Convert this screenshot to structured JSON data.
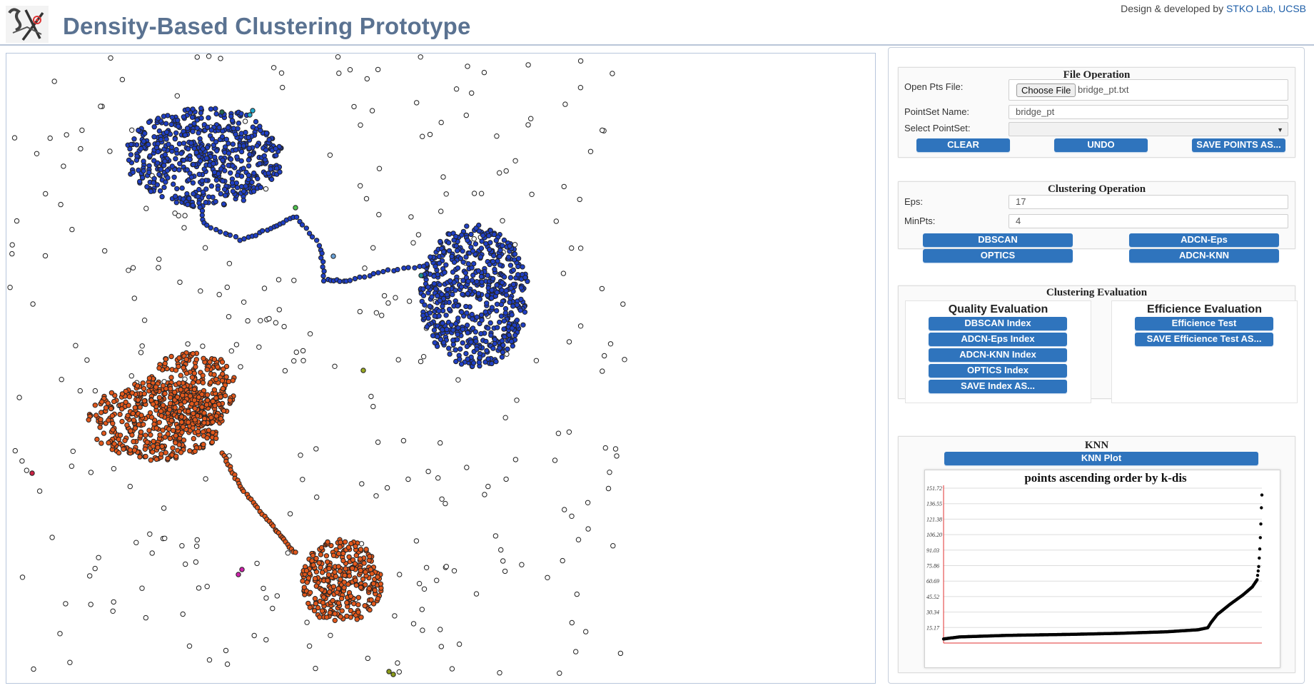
{
  "header": {
    "title": "Density-Based Clustering Prototype",
    "credit_prefix": "Design & developed by ",
    "credit_link": "STKO Lab, UCSB"
  },
  "file_operation": {
    "title": "File Operation",
    "open_label": "Open Pts File:",
    "choose_file_label": "Choose File",
    "file_name": "bridge_pt.txt",
    "pointset_name_label": "PointSet Name:",
    "pointset_name_value": "bridge_pt",
    "select_label": "Select PointSet:",
    "select_value": "",
    "clear_label": "CLEAR",
    "undo_label": "UNDO",
    "save_points_label": "SAVE POINTS AS..."
  },
  "clustering_operation": {
    "title": "Clustering Operation",
    "eps_label": "Eps:",
    "eps_value": "17",
    "minpts_label": "MinPts:",
    "minpts_value": "4",
    "dbscan_label": "DBSCAN",
    "adcn_eps_label": "ADCN-Eps",
    "optics_label": "OPTICS",
    "adcn_knn_label": "ADCN-KNN"
  },
  "clustering_evaluation": {
    "title": "Clustering Evaluation",
    "quality_title": "Quality Evaluation",
    "quality_buttons": [
      "DBSCAN Index",
      "ADCN-Eps Index",
      "ADCN-KNN Index",
      "OPTICS Index",
      "SAVE Index AS..."
    ],
    "efficiency_title": "Efficience Evaluation",
    "efficiency_buttons": [
      "Efficience Test",
      "SAVE Efficience Test AS..."
    ]
  },
  "knn": {
    "title": "KNN",
    "plot_button": "KNN Plot"
  },
  "colors": {
    "cluster_blue": "#1f3fc4",
    "cluster_orange": "#e2581c",
    "noise_stroke": "#222222",
    "accent_button": "#2f74bd",
    "axis_red": "#e03030"
  },
  "chart_data": {
    "type": "scatter",
    "title": "points ascending order by k-dis",
    "y_ticks": [
      "151.72",
      "136.55",
      "121.38",
      "106.20",
      "91.03",
      "75.86",
      "60.69",
      "45.52",
      "30.34",
      "15.17"
    ],
    "ylim": [
      0,
      151.72
    ],
    "grid": true,
    "curve": [
      [
        0,
        4
      ],
      [
        0.05,
        6
      ],
      [
        0.2,
        7.5
      ],
      [
        0.4,
        8.5
      ],
      [
        0.55,
        9.5
      ],
      [
        0.7,
        11
      ],
      [
        0.8,
        13
      ],
      [
        0.83,
        15
      ],
      [
        0.84,
        20
      ],
      [
        0.86,
        28
      ],
      [
        0.9,
        38
      ],
      [
        0.94,
        47
      ],
      [
        0.97,
        55
      ],
      [
        0.985,
        62
      ],
      [
        0.99,
        75
      ],
      [
        0.993,
        90
      ],
      [
        0.996,
        110
      ],
      [
        0.998,
        130
      ],
      [
        1,
        145
      ]
    ]
  }
}
